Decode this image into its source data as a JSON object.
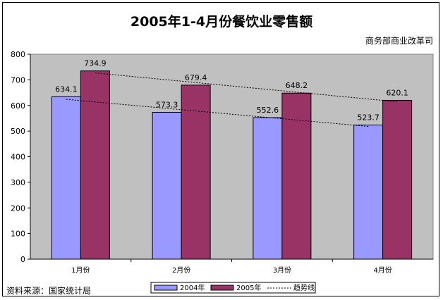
{
  "chart_data": {
    "type": "bar",
    "title": "2005年1-4月份餐饮业零售额",
    "subtitle": "商务部商业改革司",
    "source": "资料来源：国家统计局",
    "categories": [
      "1月份",
      "2月份",
      "3月份",
      "4月份"
    ],
    "series": [
      {
        "name": "2004年",
        "values": [
          634.1,
          573.3,
          552.6,
          523.7
        ],
        "color": "#9999ff"
      },
      {
        "name": "2005年",
        "values": [
          734.9,
          679.4,
          648.2,
          620.1
        ],
        "color": "#993366"
      }
    ],
    "trend_label": "趋势线",
    "ylim": [
      0,
      800
    ],
    "yticks": [
      0,
      100,
      200,
      300,
      400,
      500,
      600,
      700,
      800
    ],
    "grid": false,
    "plot_background": "#c0c0c0",
    "legend_position": "bottom"
  }
}
